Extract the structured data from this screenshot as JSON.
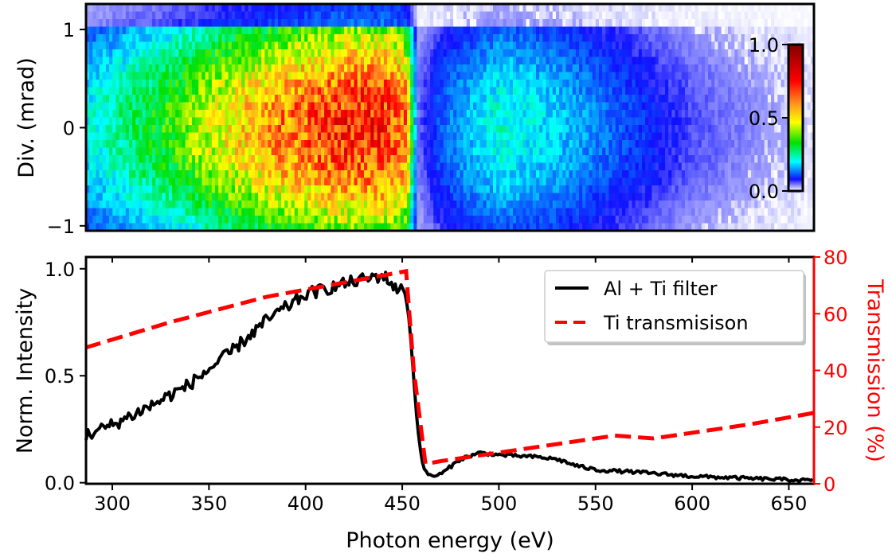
{
  "chart_data": [
    {
      "type": "heatmap",
      "xlim": [
        286,
        663
      ],
      "ylim": [
        -1.05,
        1.26
      ],
      "ylabel": "Div. (mrad)",
      "yticks": [
        {
          "v": 1,
          "label": "1"
        },
        {
          "v": 0,
          "label": "0"
        },
        {
          "v": -1,
          "label": "−1"
        }
      ],
      "colorbar": {
        "range": [
          0,
          1
        ],
        "ticks": [
          {
            "v": 1,
            "label": "1.0"
          },
          {
            "v": 0.5,
            "label": "0.5"
          },
          {
            "v": 0,
            "label": "0.0"
          }
        ],
        "colormap": [
          [
            0.0,
            "#ffffff"
          ],
          [
            0.08,
            "#1010ff"
          ],
          [
            0.2,
            "#00ffff"
          ],
          [
            0.33,
            "#00e000"
          ],
          [
            0.47,
            "#ffff00"
          ],
          [
            0.6,
            "#ff9020"
          ],
          [
            0.75,
            "#ff0000"
          ],
          [
            1.0,
            "#800000"
          ]
        ]
      },
      "intensity_profile_energy": [
        286,
        300,
        330,
        360,
        390,
        420,
        440,
        452,
        455,
        458,
        470,
        500,
        530,
        560,
        600,
        630,
        663
      ],
      "intensity_profile_value": [
        0.2,
        0.25,
        0.35,
        0.5,
        0.62,
        0.72,
        0.72,
        0.62,
        0.3,
        0.05,
        0.12,
        0.22,
        0.18,
        0.12,
        0.06,
        0.04,
        0.02
      ],
      "edge_energy": 455
    },
    {
      "type": "line",
      "xlabel": "Photon energy (eV)",
      "ylabel": "Norm. Intensity",
      "y2label": "Transmission (%)",
      "xlim": [
        286.4,
        663
      ],
      "ylim": [
        -0.005,
        1.055
      ],
      "y2lim": [
        0,
        80
      ],
      "xticks": [
        300,
        350,
        400,
        450,
        500,
        550,
        600,
        650
      ],
      "yticks": [
        {
          "v": 0,
          "label": "0.0"
        },
        {
          "v": 0.5,
          "label": "0.5"
        },
        {
          "v": 1,
          "label": "1.0"
        }
      ],
      "y2ticks": [
        0,
        20,
        40,
        60,
        80
      ],
      "legend": {
        "position": "top-right",
        "entries": [
          "Al + Ti filter",
          "Ti transmisison"
        ]
      },
      "series": [
        {
          "name": "Al + Ti filter",
          "axis": "left",
          "color": "#000000",
          "style": "solid",
          "x": [
            286,
            300,
            320,
            340,
            360,
            380,
            400,
            420,
            440,
            448,
            452,
            455,
            458,
            461,
            465,
            470,
            480,
            490,
            500,
            520,
            530,
            540,
            550,
            570,
            600,
            630,
            663
          ],
          "y": [
            0.22,
            0.27,
            0.36,
            0.46,
            0.6,
            0.76,
            0.88,
            0.93,
            0.97,
            0.9,
            0.9,
            0.6,
            0.25,
            0.06,
            0.03,
            0.04,
            0.11,
            0.14,
            0.13,
            0.12,
            0.11,
            0.08,
            0.06,
            0.05,
            0.03,
            0.02,
            0.01
          ]
        },
        {
          "name": "Ti transmisison",
          "axis": "right",
          "color": "#ff0000",
          "style": "dashed",
          "x": [
            286,
            330,
            380,
            420,
            452,
            456,
            462,
            470,
            500,
            530,
            560,
            580,
            600,
            630,
            663
          ],
          "y": [
            48,
            57,
            66,
            71,
            75,
            40,
            7,
            8,
            11,
            14,
            17,
            16,
            18,
            21,
            25
          ]
        }
      ]
    }
  ]
}
